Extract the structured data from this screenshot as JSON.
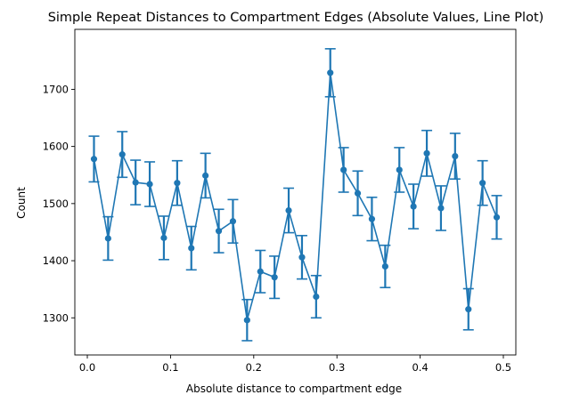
{
  "chart_data": {
    "type": "line",
    "title": "Simple Repeat Distances to Compartment Edges (Absolute Values, Line Plot)",
    "xlabel": "Absolute distance to compartment edge",
    "ylabel": "Count",
    "xlim": [
      -0.015,
      0.515
    ],
    "ylim": [
      1235,
      1805
    ],
    "xticks": [
      0.0,
      0.1,
      0.2,
      0.3,
      0.4,
      0.5
    ],
    "xtick_labels": [
      "0.0",
      "0.1",
      "0.2",
      "0.3",
      "0.4",
      "0.5"
    ],
    "yticks": [
      1300,
      1400,
      1500,
      1600,
      1700
    ],
    "ytick_labels": [
      "1300",
      "1400",
      "1500",
      "1600",
      "1700"
    ],
    "grid": false,
    "legend": "none",
    "color": "#1f77b4",
    "series": [
      {
        "x": [
          0.008,
          0.025,
          0.042,
          0.058,
          0.075,
          0.092,
          0.108,
          0.125,
          0.142,
          0.158,
          0.175,
          0.192,
          0.208,
          0.225,
          0.242,
          0.258,
          0.275,
          0.292,
          0.308,
          0.325,
          0.342,
          0.358,
          0.375,
          0.392,
          0.408,
          0.425,
          0.442,
          0.458,
          0.475,
          0.492
        ],
        "values": [
          1578,
          1439,
          1586,
          1537,
          1534,
          1440,
          1536,
          1422,
          1549,
          1452,
          1469,
          1296,
          1381,
          1371,
          1488,
          1406,
          1337,
          1729,
          1559,
          1518,
          1473,
          1390,
          1559,
          1495,
          1588,
          1492,
          1583,
          1315,
          1536,
          1476
        ],
        "errors": [
          40,
          38,
          40,
          39,
          39,
          38,
          39,
          38,
          39,
          38,
          38,
          36,
          37,
          37,
          39,
          38,
          37,
          42,
          39,
          39,
          38,
          37,
          39,
          39,
          40,
          39,
          40,
          36,
          39,
          38
        ]
      }
    ]
  }
}
